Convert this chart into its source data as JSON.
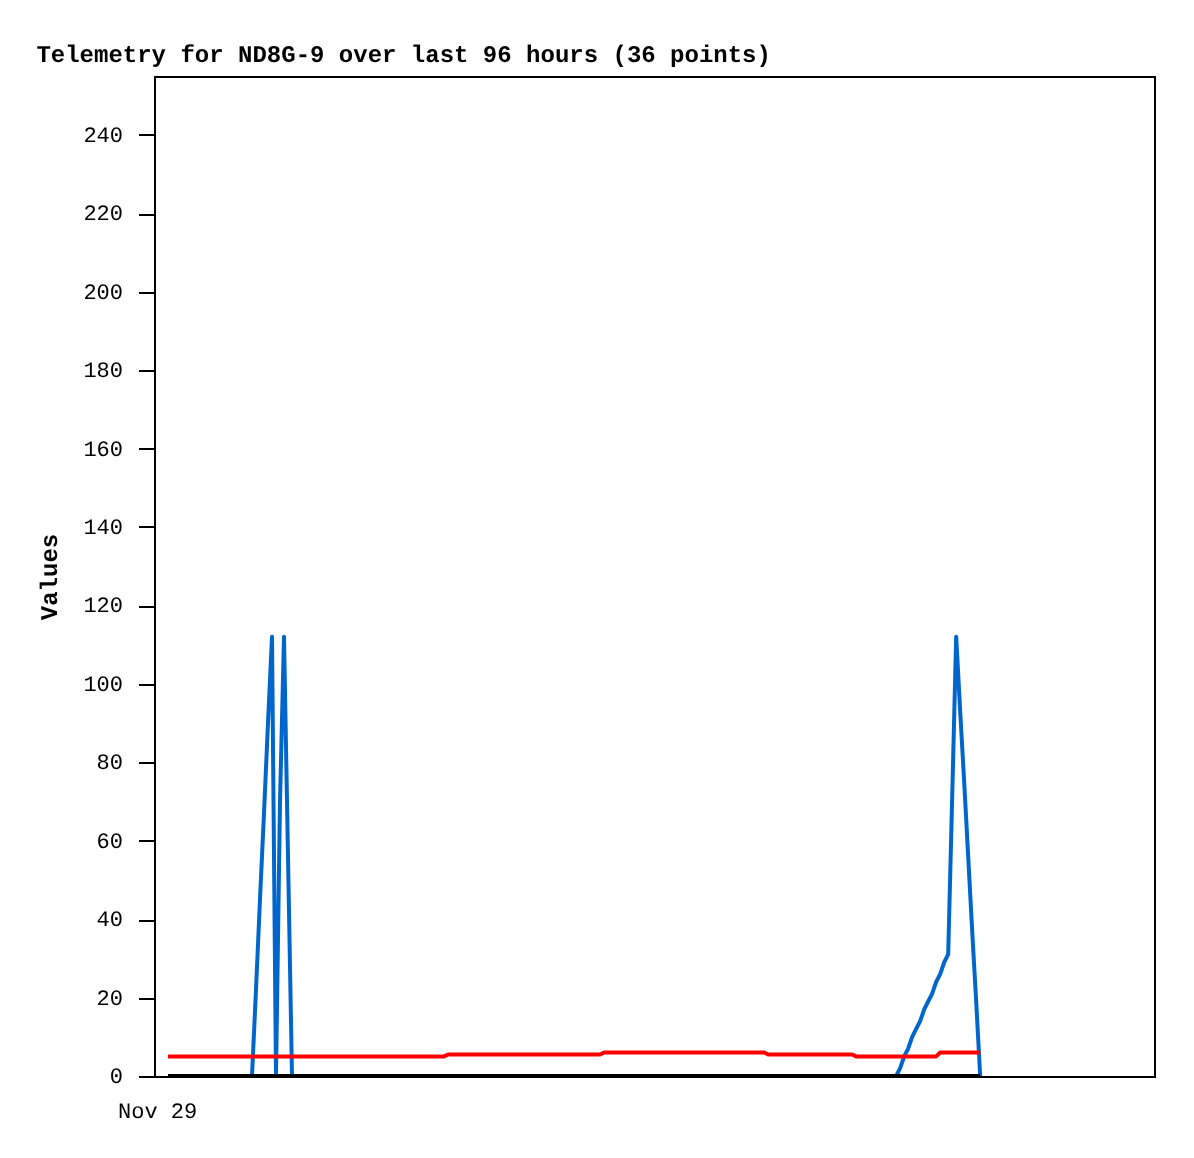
{
  "chart_data": {
    "type": "line",
    "title": "Telemetry for ND8G-9 over last 96 hours (36 points)",
    "ylabel": "Values",
    "annotations": [
      "Nov 29"
    ],
    "categories": [
      null,
      null,
      null,
      null,
      null,
      null,
      null,
      null,
      null,
      null,
      null,
      null,
      null,
      null,
      null,
      null,
      null,
      null,
      null,
      null,
      null,
      null,
      null,
      null,
      null,
      null,
      null,
      null,
      null,
      null,
      null,
      null,
      null,
      null,
      null,
      null,
      null,
      null,
      null,
      null,
      null,
      null,
      null,
      null,
      null,
      null,
      null,
      null,
      null,
      null,
      null,
      null,
      null,
      null,
      null,
      null,
      null,
      null,
      null,
      null,
      null,
      null,
      null,
      null,
      null,
      null,
      null,
      null,
      null,
      null,
      null,
      null,
      null,
      null,
      null,
      null,
      null,
      null,
      null,
      null,
      null,
      null,
      null,
      null,
      null,
      null,
      null,
      null,
      null,
      null,
      null,
      null,
      null,
      null,
      null,
      null,
      null,
      null,
      null,
      null,
      null,
      null,
      null,
      null,
      null,
      null,
      null,
      null,
      null,
      null,
      null,
      null,
      null,
      null,
      null,
      null,
      null,
      null,
      null,
      null,
      null,
      null,
      null,
      null,
      null,
      null,
      null,
      null,
      null,
      null,
      null,
      null,
      null,
      null,
      null,
      null,
      null,
      null,
      null,
      null,
      null,
      null,
      null,
      null,
      null,
      null,
      null,
      null,
      null,
      null,
      null,
      null,
      null,
      null,
      null,
      null,
      null,
      null,
      null,
      null,
      null,
      null,
      null,
      null,
      null,
      null,
      null,
      null,
      null,
      null,
      null,
      null,
      null,
      null,
      null,
      null,
      null,
      null,
      null,
      null,
      null,
      null,
      null,
      null,
      null,
      null,
      null,
      null,
      null,
      null,
      null,
      null,
      null,
      null,
      null,
      null,
      null,
      null,
      null,
      null,
      null,
      null,
      null,
      null
    ],
    "ylim": [
      0,
      255
    ],
    "yticks": [
      0,
      20,
      40,
      60,
      80,
      100,
      120,
      140,
      160,
      180,
      200,
      220,
      240
    ],
    "grid": false,
    "legend": false,
    "marker": "none",
    "line_style": "solid",
    "series": [
      {
        "color": "#0066cc",
        "values": [
          null,
          null,
          null,
          null,
          null,
          null,
          null,
          null,
          null,
          null,
          null,
          null,
          null,
          null,
          null,
          null,
          null,
          null,
          null,
          0,
          0,
          0,
          22,
          45,
          67,
          90,
          112,
          0,
          70,
          112,
          56,
          0,
          0,
          0,
          null,
          null,
          null,
          null,
          null,
          null,
          null,
          null,
          null,
          null,
          null,
          null,
          null,
          null,
          null,
          null,
          null,
          null,
          null,
          null,
          null,
          null,
          null,
          null,
          null,
          null,
          null,
          null,
          null,
          null,
          null,
          null,
          null,
          null,
          null,
          null,
          null,
          null,
          null,
          null,
          null,
          null,
          null,
          null,
          null,
          null,
          null,
          null,
          null,
          null,
          null,
          null,
          null,
          null,
          null,
          null,
          null,
          null,
          null,
          null,
          null,
          null,
          null,
          null,
          null,
          null,
          null,
          null,
          null,
          null,
          null,
          null,
          null,
          null,
          null,
          null,
          null,
          null,
          null,
          null,
          null,
          null,
          null,
          null,
          null,
          null,
          null,
          null,
          null,
          null,
          null,
          null,
          null,
          null,
          null,
          null,
          null,
          null,
          null,
          null,
          null,
          null,
          null,
          null,
          null,
          null,
          null,
          null,
          null,
          null,
          null,
          null,
          null,
          null,
          null,
          null,
          null,
          null,
          null,
          null,
          null,
          null,
          null,
          null,
          null,
          null,
          null,
          null,
          null,
          null,
          null,
          null,
          null,
          null,
          null,
          null,
          null,
          null,
          null,
          null,
          null,
          null,
          null,
          null,
          null,
          null,
          null,
          null,
          0,
          2,
          5,
          7,
          10,
          12,
          14,
          17,
          19,
          21,
          24,
          26,
          29,
          31,
          71,
          112,
          93,
          75,
          56,
          37,
          19,
          0
        ]
      },
      {
        "color": "#ff0000",
        "values": [
          5,
          5,
          5,
          5,
          5,
          5,
          5,
          5,
          5,
          5,
          5,
          5,
          5,
          5,
          5,
          5,
          5,
          5,
          5,
          5,
          5,
          5,
          5,
          5,
          5,
          5,
          5,
          5,
          5,
          5,
          5,
          5,
          5,
          5,
          5,
          5,
          5,
          5,
          5,
          5,
          5,
          5,
          5,
          5,
          5,
          5,
          5,
          5,
          5,
          5,
          5,
          5,
          5,
          5,
          5,
          5,
          5,
          5,
          5,
          5,
          5,
          5,
          5,
          5,
          5,
          5,
          5,
          5,
          5,
          5,
          5.5,
          5.5,
          5.5,
          5.5,
          5.5,
          5.5,
          5.5,
          5.5,
          5.5,
          5.5,
          5.5,
          5.5,
          5.5,
          5.5,
          5.5,
          5.5,
          5.5,
          5.5,
          5.5,
          5.5,
          5.5,
          5.5,
          5.5,
          5.5,
          5.5,
          5.5,
          5.5,
          5.5,
          5.5,
          5.5,
          5.5,
          5.5,
          5.5,
          5.5,
          5.5,
          5.5,
          5.5,
          5.5,
          5.5,
          6,
          6,
          6,
          6,
          6,
          6,
          6,
          6,
          6,
          6,
          6,
          6,
          6,
          6,
          6,
          6,
          6,
          6,
          6,
          6,
          6,
          6,
          6,
          6,
          6,
          6,
          6,
          6,
          6,
          6,
          6,
          6,
          6,
          6,
          6,
          6,
          6,
          6,
          6,
          6,
          6,
          5.5,
          5.5,
          5.5,
          5.5,
          5.5,
          5.5,
          5.5,
          5.5,
          5.5,
          5.5,
          5.5,
          5.5,
          5.5,
          5.5,
          5.5,
          5.5,
          5.5,
          5.5,
          5.5,
          5.5,
          5.5,
          5.5,
          5,
          5,
          5,
          5,
          5,
          5,
          5,
          5,
          5,
          5,
          5,
          5,
          5,
          5,
          5,
          5,
          5,
          5,
          5,
          5,
          5,
          6,
          6,
          6,
          6,
          6,
          6,
          6,
          6,
          6,
          6,
          6
        ]
      },
      {
        "color": "#000000",
        "values": [
          0,
          0,
          0,
          0,
          0,
          0,
          0,
          0,
          0,
          0,
          0,
          0,
          0,
          0,
          0,
          0,
          0,
          0,
          0,
          0,
          0,
          0,
          0,
          0,
          0,
          0,
          0,
          0,
          0,
          0,
          0,
          0,
          0,
          0,
          0,
          0,
          0,
          0,
          0,
          0,
          0,
          0,
          0,
          0,
          0,
          0,
          0,
          0,
          0,
          0,
          0,
          0,
          0,
          0,
          0,
          0,
          0,
          0,
          0,
          0,
          0,
          0,
          0,
          0,
          0,
          0,
          0,
          0,
          0,
          0,
          0,
          0,
          0,
          0,
          0,
          0,
          0,
          0,
          0,
          0,
          0,
          0,
          0,
          0,
          0,
          0,
          0,
          0,
          0,
          0,
          0,
          0,
          0,
          0,
          0,
          0,
          0,
          0,
          0,
          0,
          0,
          0,
          0,
          0,
          0,
          0,
          0,
          0,
          0,
          0,
          0,
          0,
          0,
          0,
          0,
          0,
          0,
          0,
          0,
          0,
          0,
          0,
          0,
          0,
          0,
          0,
          0,
          0,
          0,
          0,
          0,
          0,
          0,
          0,
          0,
          0,
          0,
          0,
          0,
          0,
          0,
          0,
          0,
          0,
          0,
          0,
          0,
          0,
          0,
          0,
          0,
          0,
          0,
          0,
          0,
          0,
          0,
          0,
          0,
          0,
          0,
          0,
          0,
          0,
          0,
          0,
          0,
          0,
          0,
          0,
          0,
          0,
          0,
          0,
          0,
          0,
          0,
          0,
          0,
          0,
          0,
          0,
          0,
          0,
          0,
          0,
          0,
          0,
          0,
          0,
          0,
          0,
          0,
          0,
          0,
          0,
          0,
          0,
          0,
          0,
          0,
          0,
          0,
          0
        ]
      }
    ]
  }
}
